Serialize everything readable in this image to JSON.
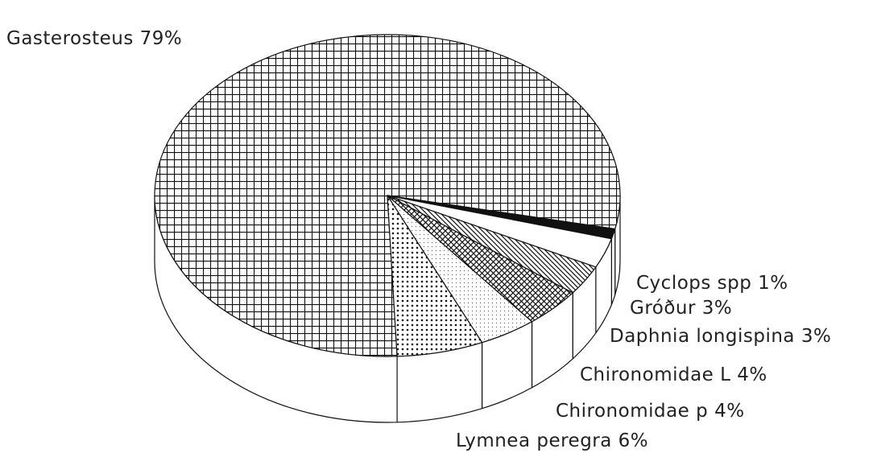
{
  "chart_data": {
    "type": "pie",
    "categories": [
      "Gasterosteus",
      "Cyclops spp",
      "Gróður",
      "Daphnia longispina",
      "Chironomidae L",
      "Chironomidae p",
      "Lymnea peregra"
    ],
    "values": [
      79,
      1,
      3,
      3,
      4,
      4,
      6
    ],
    "value_labels": [
      "79%",
      "1%",
      "3%",
      "3%",
      "4%",
      "4%",
      "6%"
    ]
  }
}
